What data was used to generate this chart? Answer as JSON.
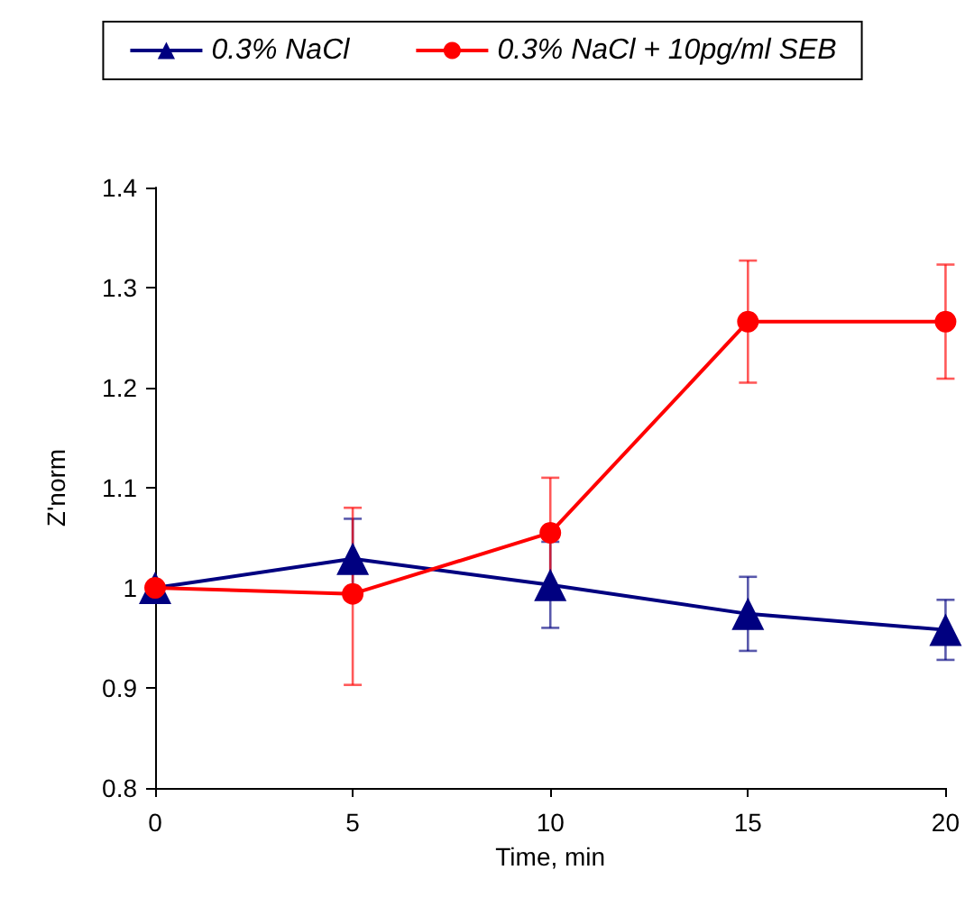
{
  "chart_data": {
    "type": "line",
    "xlabel": "Time, min",
    "ylabel": "Z'norm",
    "x": [
      0,
      5,
      10,
      15,
      20
    ],
    "series": [
      {
        "name": "0.3% NaCl",
        "color": "#000080",
        "marker": "triangle",
        "values": [
          1.0,
          1.029,
          1.003,
          0.974,
          0.958
        ],
        "errors": [
          null,
          0.04,
          0.043,
          0.037,
          0.03
        ]
      },
      {
        "name": "0.3% NaCl + 10pg/ml SEB",
        "color": "#ff0000",
        "marker": "circle",
        "values": [
          1.0,
          0.994,
          1.055,
          1.266,
          1.266
        ],
        "errors": [
          null,
          [
            0.903,
            1.08
          ],
          0.055,
          0.061,
          0.057
        ]
      }
    ],
    "xlim": [
      0,
      20
    ],
    "xticks": [
      0,
      5,
      10,
      15,
      20
    ],
    "ylim": [
      0.8,
      1.4
    ],
    "yticks": [
      0.8,
      0.9,
      1,
      1.1,
      1.2,
      1.3,
      1.4
    ],
    "grid": false,
    "legend": "top",
    "line_style": "solid"
  }
}
